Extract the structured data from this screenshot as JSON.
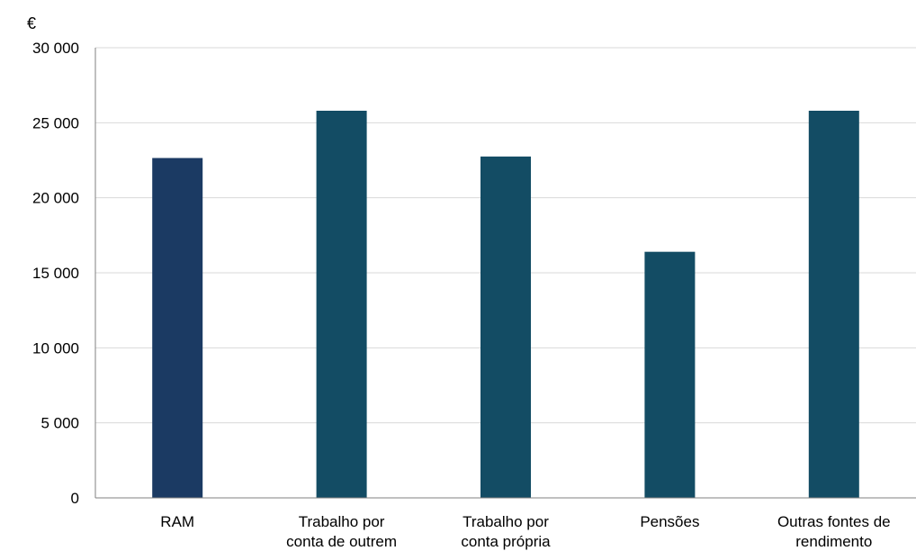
{
  "chart_data": {
    "type": "bar",
    "title": "",
    "xlabel": "",
    "ylabel": "",
    "y_unit": "€",
    "ylim": [
      0,
      30000
    ],
    "yticks": [
      0,
      5000,
      10000,
      15000,
      20000,
      25000,
      30000
    ],
    "ytick_labels": [
      "0",
      "5 000",
      "10 000",
      "15 000",
      "20 000",
      "25 000",
      "30 000"
    ],
    "grid": true,
    "legend": "none",
    "categories": [
      [
        "RAM"
      ],
      [
        "Trabalho por",
        "conta de outrem"
      ],
      [
        "Trabalho por",
        "conta própria"
      ],
      [
        "Pensões"
      ],
      [
        "Outras fontes de",
        "rendimento"
      ]
    ],
    "values": [
      22650,
      25800,
      22750,
      16400,
      25800
    ],
    "colors": [
      "#1b3a63",
      "#134c64",
      "#134c64",
      "#134c64",
      "#134c64"
    ],
    "gridline_color": "#d9d9d9",
    "axis_color": "#808080"
  }
}
